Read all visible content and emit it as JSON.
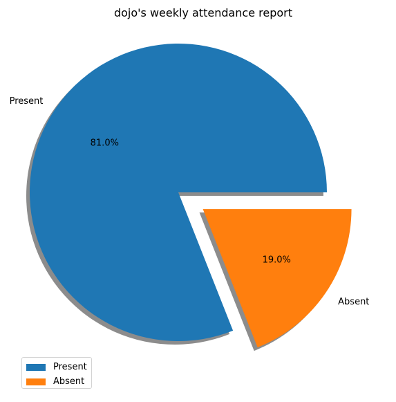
{
  "chart_data": {
    "type": "pie",
    "title": "dojo's weekly attendance report",
    "labels": [
      "Present",
      "Absent"
    ],
    "values": [
      81.0,
      19.0
    ],
    "autopct": [
      "81.0%",
      "19.0%"
    ],
    "explode": [
      0,
      0.2
    ],
    "shadow": true,
    "colors": [
      "#1f77b4",
      "#ff7f0e"
    ],
    "legend": {
      "placement": "lower-left",
      "entries": [
        "Present",
        "Absent"
      ]
    }
  }
}
